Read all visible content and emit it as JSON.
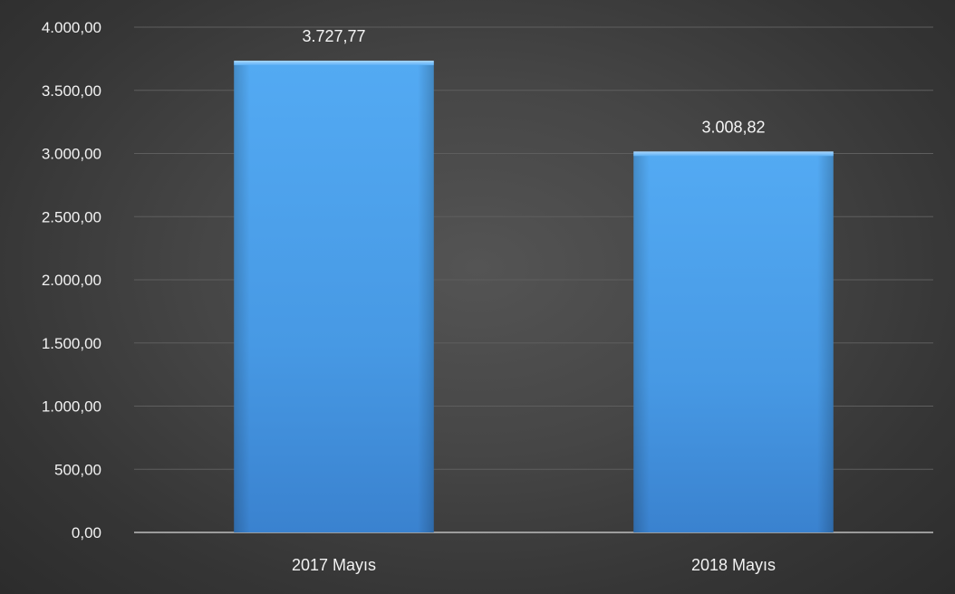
{
  "chart_data": {
    "type": "bar",
    "title": "",
    "xlabel": "",
    "ylabel": "",
    "categories": [
      "2017 Mayıs",
      "2018 Mayıs"
    ],
    "values": [
      3727.77,
      3008.82
    ],
    "value_labels": [
      "3.727,77",
      "3.008,82"
    ],
    "ylim": [
      0,
      4000
    ],
    "y_ticks": [
      0,
      500,
      1000,
      1500,
      2000,
      2500,
      3000,
      3500,
      4000
    ],
    "y_tick_labels": [
      "0,00",
      "500,00",
      "1.000,00",
      "1.500,00",
      "2.000,00",
      "2.500,00",
      "3.000,00",
      "3.500,00",
      "4.000,00"
    ],
    "grid": true,
    "legend": "none",
    "bar_color": "#4a9fe8",
    "background_color": "#404040"
  }
}
